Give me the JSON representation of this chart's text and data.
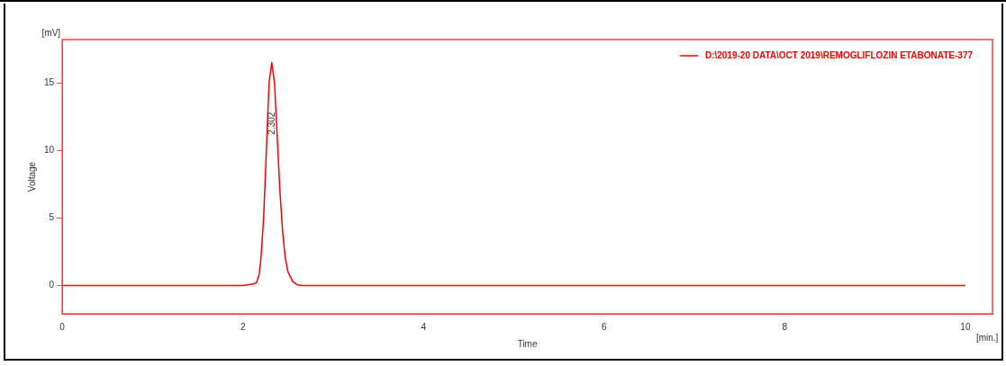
{
  "chart_data": {
    "type": "line",
    "xlabel": "Time",
    "ylabel": "Voltage",
    "x": [
      0,
      1,
      2,
      2.1,
      2.15,
      2.18,
      2.2,
      2.23,
      2.26,
      2.29,
      2.32,
      2.35,
      2.38,
      2.41,
      2.44,
      2.47,
      2.5,
      2.55,
      2.6,
      2.66,
      5,
      10
    ],
    "series": [
      {
        "name": "D:\\2019-20 DATA\\OCT 2019\\REMOGLIFLOZIN ETABONATE-377",
        "color": "#ff0000",
        "values": [
          0,
          0,
          0,
          0.1,
          0.2,
          0.8,
          2,
          5,
          10,
          15,
          16.5,
          15,
          11,
          7,
          4,
          2,
          1,
          0.3,
          0.05,
          0,
          0,
          0
        ]
      }
    ],
    "xlim": [
      0,
      10.3
    ],
    "xticks": [
      0,
      2,
      4,
      6,
      8,
      10
    ],
    "ylim": [
      -2.1,
      18.2
    ],
    "yticks": [
      0,
      5,
      10,
      15
    ],
    "annotations": [
      {
        "text": "2.302",
        "x": 2.32,
        "y": 12
      },
      "[mV]",
      "[min.]"
    ],
    "legend": "top right",
    "grid": false,
    "marker": "none",
    "line_style": "solid"
  }
}
